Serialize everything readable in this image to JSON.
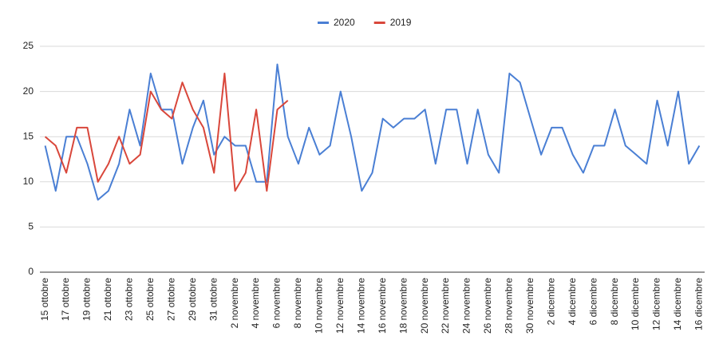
{
  "chart_data": {
    "type": "line",
    "categories": [
      "15 ottobre",
      null,
      "17 ottobre",
      null,
      "19 ottobre",
      null,
      "21 ottobre",
      null,
      "23 ottobre",
      null,
      "25 ottobre",
      null,
      "27 ottobre",
      null,
      "29 ottobre",
      null,
      "31 ottobre",
      null,
      "2 novembre",
      null,
      "4 novembre",
      null,
      "6 novembre",
      null,
      "8 novembre",
      null,
      "10 novembre",
      null,
      "12 novembre",
      null,
      "14 novembre",
      null,
      "16 novembre",
      null,
      "18 novembre",
      null,
      "20 novembre",
      null,
      "22 novembre",
      null,
      "24 novembre",
      null,
      "26 novembre",
      null,
      "28 novembre",
      null,
      "30 novembre",
      null,
      "2 dicembre",
      null,
      "4 dicembre",
      null,
      "6 dicembre",
      null,
      "8 dicembre",
      null,
      "10 dicembre",
      null,
      "12 dicembre",
      null,
      "14 dicembre",
      null,
      "16 dicembre"
    ],
    "series": [
      {
        "name": "2020",
        "color": "#4a7fd4",
        "values": [
          14,
          9,
          15,
          15,
          12,
          8,
          9,
          12,
          18,
          14,
          22,
          18,
          18,
          12,
          16,
          19,
          13,
          15,
          14,
          14,
          10,
          10,
          23,
          15,
          12,
          16,
          13,
          14,
          20,
          15,
          9,
          11,
          17,
          16,
          17,
          17,
          18,
          12,
          18,
          18,
          12,
          18,
          13,
          11,
          22,
          21,
          17,
          13,
          16,
          16,
          13,
          11,
          14,
          14,
          18,
          14,
          13,
          12,
          19,
          14,
          20,
          12,
          14
        ]
      },
      {
        "name": "2019",
        "color": "#d9473b",
        "values": [
          15,
          14,
          11,
          16,
          16,
          10,
          12,
          15,
          12,
          13,
          20,
          18,
          17,
          21,
          18,
          16,
          11,
          22,
          9,
          11,
          18,
          9,
          18,
          19,
          null,
          null,
          null,
          null,
          null,
          null,
          null,
          null,
          null,
          null,
          null,
          null,
          null,
          null,
          null,
          null,
          null,
          null,
          null,
          null,
          null,
          null,
          null,
          null,
          null,
          null,
          null,
          null,
          null,
          null,
          null,
          null,
          null,
          null,
          null,
          null,
          null,
          null,
          null
        ]
      }
    ],
    "ylim": [
      0,
      25
    ],
    "yticks": [
      0,
      5,
      10,
      15,
      20,
      25
    ],
    "grid": true,
    "legend": "top"
  }
}
